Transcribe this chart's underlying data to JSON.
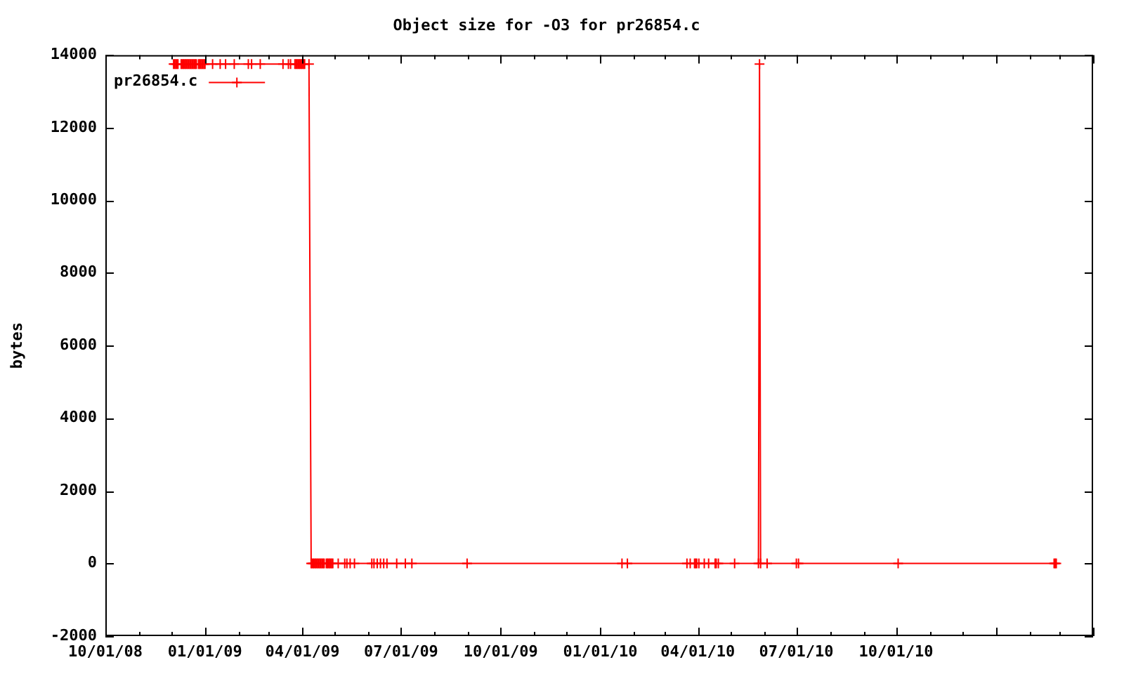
{
  "chart_data": {
    "type": "line",
    "title": "Object size for -O3 for pr26854.c",
    "ylabel": "bytes",
    "x": [
      "2008-12-03",
      "2008-12-04",
      "2008-12-05",
      "2008-12-06",
      "2008-12-07",
      "2008-12-10",
      "2008-12-11",
      "2008-12-12",
      "2008-12-13",
      "2008-12-14",
      "2008-12-15",
      "2008-12-16",
      "2008-12-17",
      "2008-12-18",
      "2008-12-19",
      "2008-12-20",
      "2008-12-21",
      "2008-12-22",
      "2008-12-23",
      "2008-12-24",
      "2008-12-26",
      "2008-12-27",
      "2008-12-28",
      "2008-12-29",
      "2008-12-30",
      "2008-12-31",
      "2009-01-01",
      "2009-01-08",
      "2009-01-15",
      "2009-01-20",
      "2009-01-28",
      "2009-02-10",
      "2009-02-13",
      "2009-02-21",
      "2009-03-14",
      "2009-03-19",
      "2009-03-21",
      "2009-03-25",
      "2009-03-26",
      "2009-03-27",
      "2009-03-28",
      "2009-03-29",
      "2009-03-30",
      "2009-03-31",
      "2009-04-01",
      "2009-04-02",
      "2009-04-03",
      "2009-04-07",
      "2009-04-09",
      "2009-04-10",
      "2009-04-11",
      "2009-04-12",
      "2009-04-13",
      "2009-04-14",
      "2009-04-15",
      "2009-04-16",
      "2009-04-17",
      "2009-04-18",
      "2009-04-19",
      "2009-04-20",
      "2009-04-21",
      "2009-04-23",
      "2009-04-24",
      "2009-04-25",
      "2009-04-26",
      "2009-04-27",
      "2009-04-28",
      "2009-04-29",
      "2009-05-04",
      "2009-05-10",
      "2009-05-12",
      "2009-05-15",
      "2009-05-19",
      "2009-06-04",
      "2009-06-06",
      "2009-06-09",
      "2009-06-12",
      "2009-06-15",
      "2009-06-18",
      "2009-06-27",
      "2009-07-05",
      "2009-07-11",
      "2009-08-31",
      "2010-01-21",
      "2010-01-26",
      "2010-03-22",
      "2010-03-25",
      "2010-03-29",
      "2010-03-30",
      "2010-03-31",
      "2010-04-02",
      "2010-04-07",
      "2010-04-11",
      "2010-04-17",
      "2010-04-18",
      "2010-04-20",
      "2010-05-05",
      "2010-05-27",
      "2010-05-28",
      "2010-05-29",
      "2010-06-04",
      "2010-07-01",
      "2010-07-03",
      "2010-10-03",
      "2011-02-24",
      "2011-02-25",
      "2011-02-26"
    ],
    "series": [
      {
        "name": "pr26854.c",
        "color": "#ff0000",
        "values": [
          13750,
          13750,
          13750,
          13750,
          13750,
          13750,
          13750,
          13750,
          13750,
          13750,
          13750,
          13750,
          13750,
          13750,
          13750,
          13750,
          13750,
          13750,
          13750,
          13750,
          13750,
          13750,
          13750,
          13750,
          13750,
          13750,
          13750,
          13750,
          13750,
          13750,
          13750,
          13750,
          13750,
          13750,
          13750,
          13750,
          13750,
          13750,
          13750,
          13750,
          13750,
          13750,
          13750,
          13750,
          13750,
          13750,
          13750,
          13750,
          0,
          0,
          0,
          0,
          0,
          0,
          0,
          0,
          0,
          0,
          0,
          0,
          0,
          0,
          0,
          0,
          0,
          0,
          0,
          0,
          0,
          0,
          0,
          0,
          0,
          0,
          0,
          0,
          0,
          0,
          0,
          0,
          0,
          0,
          0,
          0,
          0,
          0,
          0,
          0,
          0,
          0,
          0,
          0,
          0,
          0,
          0,
          0,
          0,
          0,
          13750,
          0,
          0,
          0,
          0,
          0,
          0,
          0,
          0
        ]
      }
    ],
    "xlim": [
      "2008-10-01",
      "2011-04-01"
    ],
    "xticks": [
      {
        "value": "2008-10-01",
        "label": "10/01/08"
      },
      {
        "value": "2008-11-01",
        "label": null
      },
      {
        "value": "2008-12-01",
        "label": null
      },
      {
        "value": "2009-01-01",
        "label": "01/01/09"
      },
      {
        "value": "2009-02-01",
        "label": null
      },
      {
        "value": "2009-03-01",
        "label": null
      },
      {
        "value": "2009-04-01",
        "label": "04/01/09"
      },
      {
        "value": "2009-05-01",
        "label": null
      },
      {
        "value": "2009-06-01",
        "label": null
      },
      {
        "value": "2009-07-01",
        "label": "07/01/09"
      },
      {
        "value": "2009-08-01",
        "label": null
      },
      {
        "value": "2009-09-01",
        "label": null
      },
      {
        "value": "2009-10-01",
        "label": "10/01/09"
      },
      {
        "value": "2009-11-01",
        "label": null
      },
      {
        "value": "2009-12-01",
        "label": null
      },
      {
        "value": "2010-01-01",
        "label": "01/01/10"
      },
      {
        "value": "2010-02-01",
        "label": null
      },
      {
        "value": "2010-03-01",
        "label": null
      },
      {
        "value": "2010-04-01",
        "label": "04/01/10"
      },
      {
        "value": "2010-05-01",
        "label": null
      },
      {
        "value": "2010-06-01",
        "label": null
      },
      {
        "value": "2010-07-01",
        "label": "07/01/10"
      },
      {
        "value": "2010-08-01",
        "label": null
      },
      {
        "value": "2010-09-01",
        "label": null
      },
      {
        "value": "2010-10-01",
        "label": "10/01/10"
      },
      {
        "value": "2010-11-01",
        "label": null
      },
      {
        "value": "2010-12-01",
        "label": null
      },
      {
        "value": "2011-01-01",
        "label": null
      },
      {
        "value": "2011-02-01",
        "label": null
      },
      {
        "value": "2011-03-01",
        "label": null
      },
      {
        "value": "2011-04-01",
        "label": null
      }
    ],
    "ylim": [
      -2000,
      14000
    ],
    "yticks": [
      -2000,
      0,
      2000,
      4000,
      6000,
      8000,
      10000,
      12000,
      14000
    ],
    "legend": "top left",
    "marker": "cross",
    "line_style": "solid"
  }
}
